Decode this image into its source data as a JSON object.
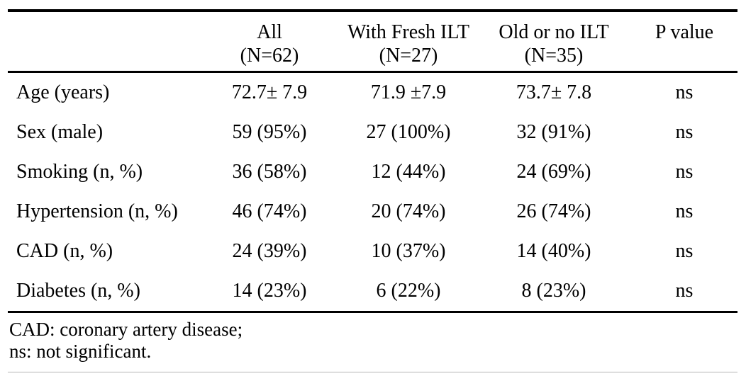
{
  "table": {
    "columns": [
      {
        "line1": "",
        "line2": ""
      },
      {
        "line1": "All",
        "line2": "(N=62)"
      },
      {
        "line1": "With Fresh ILT",
        "line2": "(N=27)"
      },
      {
        "line1": "Old or no ILT",
        "line2": "(N=35)"
      },
      {
        "line1": "P value",
        "line2": ""
      }
    ],
    "rows": [
      {
        "label": "Age (years)",
        "all": "72.7± 7.9",
        "fresh": "71.9 ±7.9",
        "old": "73.7± 7.8",
        "p": "ns"
      },
      {
        "label": "Sex (male)",
        "all": "59 (95%)",
        "fresh": "27 (100%)",
        "old": "32 (91%)",
        "p": "ns"
      },
      {
        "label": "Smoking (n, %)",
        "all": "36 (58%)",
        "fresh": "12 (44%)",
        "old": "24 (69%)",
        "p": "ns"
      },
      {
        "label": "Hypertension (n, %)",
        "all": "46 (74%)",
        "fresh": "20 (74%)",
        "old": "26 (74%)",
        "p": "ns"
      },
      {
        "label": "CAD (n, %)",
        "all": "24 (39%)",
        "fresh": "10 (37%)",
        "old": "14 (40%)",
        "p": "ns"
      },
      {
        "label": "Diabetes (n, %)",
        "all": "14 (23%)",
        "fresh": "6 (22%)",
        "old": "8 (23%)",
        "p": "ns"
      }
    ],
    "footnotes": [
      "CAD: coronary artery disease;",
      "ns: not significant."
    ]
  },
  "colors": {
    "text": "#000000",
    "rule": "#000000",
    "bottom_rule": "#b5b5b5",
    "background": "#ffffff"
  }
}
